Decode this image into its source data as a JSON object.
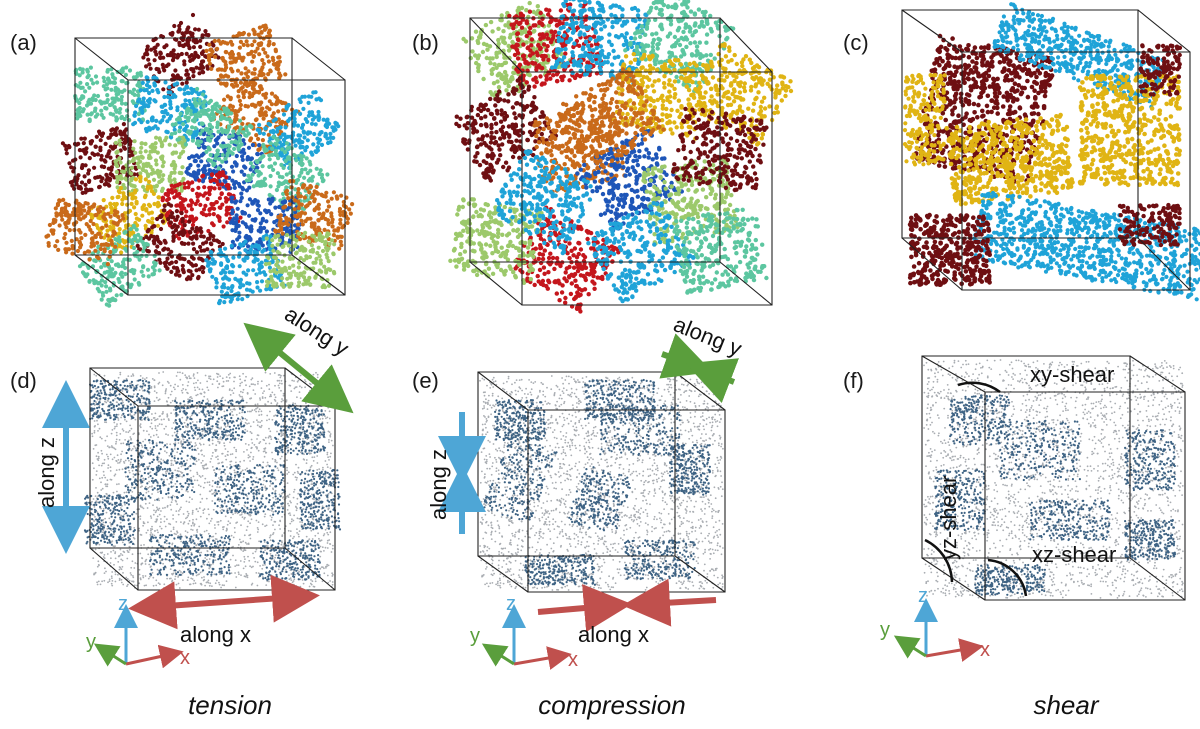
{
  "panels": [
    {
      "label": "(a)"
    },
    {
      "label": "(b)"
    },
    {
      "label": "(c)"
    },
    {
      "label": "(d)"
    },
    {
      "label": "(e)"
    },
    {
      "label": "(f)"
    }
  ],
  "annotations": {
    "along_x": "along x",
    "along_y": "along y",
    "along_z": "along z",
    "xy_shear": "xy-shear",
    "yz_shear": "yz-shear",
    "xz_shear": "xz-shear"
  },
  "axes": {
    "x": "x",
    "y": "y",
    "z": "z"
  },
  "captions": {
    "tension": "tension",
    "compression": "compression",
    "shear": "shear"
  },
  "colors": {
    "dark_red": "#6e0f12",
    "red": "#c4161c",
    "orange": "#c96a1a",
    "gold": "#e0b414",
    "cyan": "#1fa3d8",
    "blue": "#1e56b8",
    "light_green": "#9cc96b",
    "teal": "#5cc6a0",
    "steel_blue": "#3e6384",
    "arrow_red": "#c0504d",
    "arrow_green": "#5a9e3c",
    "arrow_blue": "#4ea6d6"
  }
}
